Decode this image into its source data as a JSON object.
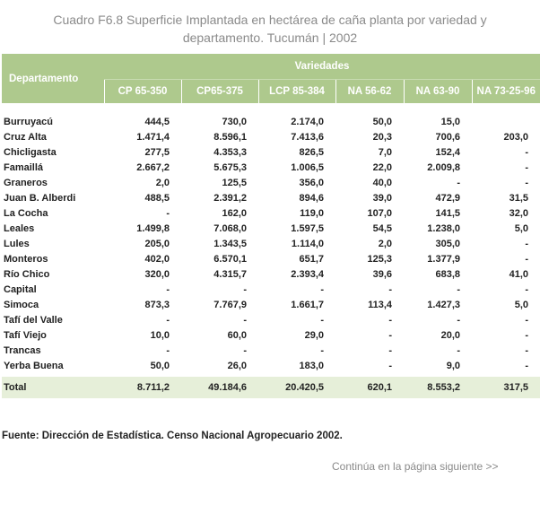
{
  "title_line1": "Cuadro F6.8 Superficie Implantada  en hectárea de caña planta por variedad y",
  "title_line2": "departamento. Tucumán | 2002",
  "header": {
    "departamento": "Departamento",
    "variedades": "Variedades",
    "columns": [
      "CP 65-350",
      "CP65-375",
      "LCP 85-384",
      "NA 56-62",
      "NA 63-90",
      "NA 73-25-96"
    ]
  },
  "rows": [
    {
      "name": "Burruyacú",
      "values": [
        "444,5",
        "730,0",
        "2.174,0",
        "50,0",
        "15,0",
        ""
      ]
    },
    {
      "name": "Cruz Alta",
      "values": [
        "1.471,4",
        "8.596,1",
        "7.413,6",
        "20,3",
        "700,6",
        "203,0"
      ]
    },
    {
      "name": "Chicligasta",
      "values": [
        "277,5",
        "4.353,3",
        "826,5",
        "7,0",
        "152,4",
        "-"
      ]
    },
    {
      "name": "Famaillá",
      "values": [
        "2.667,2",
        "5.675,3",
        "1.006,5",
        "22,0",
        "2.009,8",
        "-"
      ]
    },
    {
      "name": "Graneros",
      "values": [
        "2,0",
        "125,5",
        "356,0",
        "40,0",
        "-",
        "-"
      ]
    },
    {
      "name": "Juan B. Alberdi",
      "values": [
        "488,5",
        "2.391,2",
        "894,6",
        "39,0",
        "472,9",
        "31,5"
      ]
    },
    {
      "name": "La Cocha",
      "values": [
        "-",
        "162,0",
        "119,0",
        "107,0",
        "141,5",
        "32,0"
      ]
    },
    {
      "name": "Leales",
      "values": [
        "1.499,8",
        "7.068,0",
        "1.597,5",
        "54,5",
        "1.238,0",
        "5,0"
      ]
    },
    {
      "name": "Lules",
      "values": [
        "205,0",
        "1.343,5",
        "1.114,0",
        "2,0",
        "305,0",
        "-"
      ]
    },
    {
      "name": "Monteros",
      "values": [
        "402,0",
        "6.570,1",
        "651,7",
        "125,3",
        "1.377,9",
        "-"
      ]
    },
    {
      "name": "Río Chico",
      "values": [
        "320,0",
        "4.315,7",
        "2.393,4",
        "39,6",
        "683,8",
        "41,0"
      ]
    },
    {
      "name": "Capital",
      "values": [
        "-",
        "-",
        "-",
        "-",
        "-",
        "-"
      ]
    },
    {
      "name": "Simoca",
      "values": [
        "873,3",
        "7.767,9",
        "1.661,7",
        "113,4",
        "1.427,3",
        "5,0"
      ]
    },
    {
      "name": "Tafí del Valle",
      "values": [
        "-",
        "-",
        "-",
        "-",
        "-",
        "-"
      ]
    },
    {
      "name": "Tafí Viejo",
      "values": [
        "10,0",
        "60,0",
        "29,0",
        "-",
        "20,0",
        "-"
      ]
    },
    {
      "name": "Trancas",
      "values": [
        "-",
        "-",
        "-",
        "-",
        "-",
        "-"
      ]
    },
    {
      "name": "Yerba Buena",
      "values": [
        "50,0",
        "26,0",
        "183,0",
        "-",
        "9,0",
        "-"
      ]
    }
  ],
  "total": {
    "name": "Total",
    "values": [
      "8.711,2",
      "49.184,6",
      "20.420,5",
      "620,1",
      "8.553,2",
      "317,5"
    ]
  },
  "source": "Fuente: Dirección de Estadística. Censo Nacional Agropecuario 2002.",
  "next_link": "Continúa en la página siguiente >>"
}
